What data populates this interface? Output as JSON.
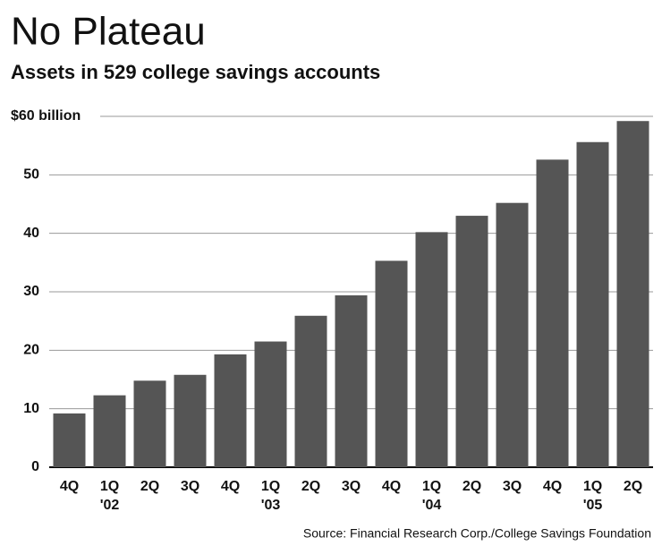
{
  "chart_data": {
    "type": "bar",
    "title": "No Plateau",
    "subtitle": "Assets in 529 college savings accounts",
    "source": "Source: Financial Research Corp./College Savings Foundation",
    "categories": [
      "4Q",
      "1Q",
      "2Q",
      "3Q",
      "4Q",
      "1Q",
      "2Q",
      "3Q",
      "4Q",
      "1Q",
      "2Q",
      "3Q",
      "4Q",
      "1Q",
      "2Q"
    ],
    "year_labels": [
      null,
      "'02",
      null,
      null,
      null,
      "'03",
      null,
      null,
      null,
      "'04",
      null,
      null,
      null,
      "'05",
      null
    ],
    "values": [
      9.2,
      12.3,
      14.8,
      15.8,
      19.3,
      21.5,
      25.9,
      29.4,
      35.3,
      40.2,
      43.0,
      45.2,
      52.6,
      55.6,
      59.2
    ],
    "color": "#555555",
    "ylim": [
      0,
      60
    ],
    "yticks": [
      0,
      10,
      20,
      30,
      40,
      50,
      {
        "value": 60,
        "label": "$60 billion"
      }
    ],
    "grid": true
  }
}
